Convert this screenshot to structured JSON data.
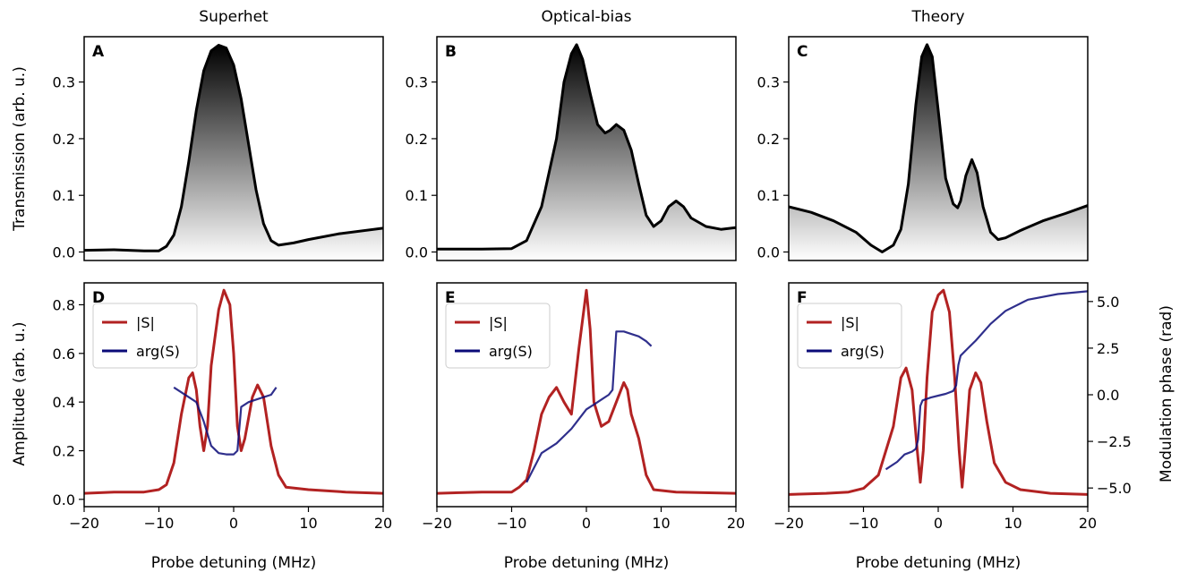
{
  "columns": [
    "Superhet",
    "Optical-bias",
    "Theory"
  ],
  "colors": {
    "amplitude": "#b22222",
    "phase": "#0a0a78",
    "transmission": "#000000"
  },
  "chart_data": [
    {
      "panel": "A",
      "type": "area",
      "column": "Superhet",
      "ylabel": "Transmission (arb. u.)",
      "xlim": [
        -20,
        20
      ],
      "ylim": [
        -0.015,
        0.38
      ],
      "yticks": [
        0.0,
        0.1,
        0.2,
        0.3
      ],
      "points": [
        [
          -20,
          0.003
        ],
        [
          -16,
          0.004
        ],
        [
          -12,
          0.002
        ],
        [
          -10,
          0.002
        ],
        [
          -9,
          0.01
        ],
        [
          -8,
          0.03
        ],
        [
          -7,
          0.08
        ],
        [
          -6,
          0.16
        ],
        [
          -5,
          0.25
        ],
        [
          -4,
          0.32
        ],
        [
          -3,
          0.355
        ],
        [
          -2,
          0.365
        ],
        [
          -1,
          0.36
        ],
        [
          0,
          0.33
        ],
        [
          1,
          0.27
        ],
        [
          2,
          0.19
        ],
        [
          3,
          0.11
        ],
        [
          4,
          0.05
        ],
        [
          5,
          0.02
        ],
        [
          6,
          0.012
        ],
        [
          8,
          0.016
        ],
        [
          10,
          0.022
        ],
        [
          14,
          0.032
        ],
        [
          20,
          0.042
        ]
      ]
    },
    {
      "panel": "B",
      "type": "area",
      "column": "Optical-bias",
      "xlim": [
        -20,
        20
      ],
      "ylim": [
        -0.015,
        0.38
      ],
      "yticks": [
        0.0,
        0.1,
        0.2,
        0.3
      ],
      "points": [
        [
          -20,
          0.005
        ],
        [
          -14,
          0.005
        ],
        [
          -10,
          0.006
        ],
        [
          -8,
          0.02
        ],
        [
          -6,
          0.08
        ],
        [
          -4,
          0.2
        ],
        [
          -3,
          0.3
        ],
        [
          -2,
          0.35
        ],
        [
          -1.3,
          0.366
        ],
        [
          -0.5,
          0.34
        ],
        [
          0.5,
          0.28
        ],
        [
          1.5,
          0.225
        ],
        [
          2.5,
          0.21
        ],
        [
          3.2,
          0.215
        ],
        [
          4,
          0.225
        ],
        [
          5,
          0.215
        ],
        [
          6,
          0.18
        ],
        [
          7,
          0.12
        ],
        [
          8,
          0.065
        ],
        [
          9,
          0.045
        ],
        [
          10,
          0.055
        ],
        [
          11,
          0.08
        ],
        [
          12,
          0.09
        ],
        [
          13,
          0.08
        ],
        [
          14,
          0.06
        ],
        [
          16,
          0.045
        ],
        [
          18,
          0.04
        ],
        [
          20,
          0.043
        ]
      ]
    },
    {
      "panel": "C",
      "type": "area",
      "column": "Theory",
      "xlim": [
        -20,
        20
      ],
      "ylim": [
        -0.015,
        0.38
      ],
      "yticks": [
        0.0,
        0.1,
        0.2,
        0.3
      ],
      "points": [
        [
          -20,
          0.08
        ],
        [
          -17,
          0.07
        ],
        [
          -14,
          0.055
        ],
        [
          -11,
          0.035
        ],
        [
          -9,
          0.012
        ],
        [
          -7.5,
          0.0
        ],
        [
          -6,
          0.012
        ],
        [
          -5,
          0.04
        ],
        [
          -4,
          0.12
        ],
        [
          -3,
          0.26
        ],
        [
          -2.2,
          0.345
        ],
        [
          -1.5,
          0.366
        ],
        [
          -0.8,
          0.345
        ],
        [
          0,
          0.25
        ],
        [
          1,
          0.13
        ],
        [
          2,
          0.085
        ],
        [
          2.6,
          0.078
        ],
        [
          3,
          0.09
        ],
        [
          3.7,
          0.135
        ],
        [
          4.5,
          0.163
        ],
        [
          5.2,
          0.14
        ],
        [
          6,
          0.08
        ],
        [
          7,
          0.035
        ],
        [
          8,
          0.022
        ],
        [
          9,
          0.025
        ],
        [
          11,
          0.038
        ],
        [
          14,
          0.055
        ],
        [
          17,
          0.068
        ],
        [
          20,
          0.082
        ]
      ]
    },
    {
      "panel": "D",
      "type": "line",
      "column": "Superhet",
      "xlabel": "Probe detuning (MHz)",
      "ylabel": "Amplitude (arb. u.)",
      "xlim": [
        -20,
        20
      ],
      "ylim": [
        -0.03,
        0.89
      ],
      "xticks": [
        -20,
        -10,
        0,
        10,
        20
      ],
      "yticks": [
        0.0,
        0.2,
        0.4,
        0.6,
        0.8
      ],
      "series": [
        {
          "name": "|S|",
          "points": [
            [
              -20,
              0.025
            ],
            [
              -16,
              0.03
            ],
            [
              -12,
              0.03
            ],
            [
              -10,
              0.04
            ],
            [
              -9,
              0.06
            ],
            [
              -8,
              0.15
            ],
            [
              -7,
              0.35
            ],
            [
              -6,
              0.5
            ],
            [
              -5.5,
              0.52
            ],
            [
              -5,
              0.45
            ],
            [
              -4.5,
              0.3
            ],
            [
              -4,
              0.2
            ],
            [
              -3.5,
              0.3
            ],
            [
              -3,
              0.55
            ],
            [
              -2,
              0.78
            ],
            [
              -1.3,
              0.86
            ],
            [
              -0.5,
              0.8
            ],
            [
              0,
              0.6
            ],
            [
              0.5,
              0.3
            ],
            [
              1,
              0.2
            ],
            [
              1.5,
              0.25
            ],
            [
              2.5,
              0.42
            ],
            [
              3.2,
              0.47
            ],
            [
              4,
              0.42
            ],
            [
              5,
              0.22
            ],
            [
              6,
              0.1
            ],
            [
              7,
              0.05
            ],
            [
              10,
              0.04
            ],
            [
              15,
              0.03
            ],
            [
              20,
              0.025
            ]
          ]
        },
        {
          "name": "arg(S)",
          "points": [
            [
              -8,
              0.46
            ],
            [
              -6,
              0.42
            ],
            [
              -5,
              0.4
            ],
            [
              -4,
              0.32
            ],
            [
              -3,
              0.22
            ],
            [
              -2,
              0.19
            ],
            [
              -1,
              0.185
            ],
            [
              0,
              0.185
            ],
            [
              0.5,
              0.2
            ],
            [
              1,
              0.38
            ],
            [
              2,
              0.4
            ],
            [
              3,
              0.41
            ],
            [
              4,
              0.42
            ],
            [
              5,
              0.43
            ],
            [
              5.7,
              0.46
            ]
          ]
        }
      ]
    },
    {
      "panel": "E",
      "type": "line",
      "column": "Optical-bias",
      "xlabel": "Probe detuning (MHz)",
      "xlim": [
        -20,
        20
      ],
      "ylim": [
        -0.03,
        0.89
      ],
      "xticks": [
        -20,
        -10,
        0,
        10,
        20
      ],
      "series": [
        {
          "name": "|S|",
          "points": [
            [
              -20,
              0.025
            ],
            [
              -14,
              0.03
            ],
            [
              -10,
              0.03
            ],
            [
              -9,
              0.05
            ],
            [
              -8,
              0.08
            ],
            [
              -7,
              0.2
            ],
            [
              -6,
              0.35
            ],
            [
              -5,
              0.42
            ],
            [
              -4,
              0.46
            ],
            [
              -3,
              0.4
            ],
            [
              -2,
              0.35
            ],
            [
              -1,
              0.62
            ],
            [
              0,
              0.86
            ],
            [
              0.5,
              0.7
            ],
            [
              1,
              0.4
            ],
            [
              2,
              0.3
            ],
            [
              3,
              0.32
            ],
            [
              4,
              0.4
            ],
            [
              5,
              0.48
            ],
            [
              5.5,
              0.45
            ],
            [
              6,
              0.35
            ],
            [
              7,
              0.25
            ],
            [
              8,
              0.1
            ],
            [
              9,
              0.04
            ],
            [
              12,
              0.03
            ],
            [
              20,
              0.025
            ]
          ]
        },
        {
          "name": "arg(S)",
          "points": [
            [
              -8,
              0.07
            ],
            [
              -6,
              0.19
            ],
            [
              -4,
              0.23
            ],
            [
              -2,
              0.29
            ],
            [
              -1,
              0.33
            ],
            [
              0,
              0.37
            ],
            [
              1,
              0.39
            ],
            [
              2,
              0.41
            ],
            [
              3,
              0.43
            ],
            [
              3.5,
              0.45
            ],
            [
              4,
              0.69
            ],
            [
              5,
              0.69
            ],
            [
              6,
              0.68
            ],
            [
              7,
              0.67
            ],
            [
              8,
              0.65
            ],
            [
              8.7,
              0.63
            ]
          ]
        }
      ]
    },
    {
      "panel": "F",
      "type": "line",
      "column": "Theory",
      "xlabel": "Probe detuning (MHz)",
      "y2label": "Modulation phase (rad)",
      "xlim": [
        -20,
        20
      ],
      "ylim": [
        -0.03,
        0.89
      ],
      "y2lim": [
        -6.0,
        6.0
      ],
      "xticks": [
        -20,
        -10,
        0,
        10,
        20
      ],
      "y2ticks": [
        -5.0,
        -2.5,
        0.0,
        2.5,
        5.0
      ],
      "series": [
        {
          "name": "|S|",
          "axis": "left",
          "points": [
            [
              -20,
              0.02
            ],
            [
              -15,
              0.025
            ],
            [
              -12,
              0.03
            ],
            [
              -10,
              0.045
            ],
            [
              -8,
              0.1
            ],
            [
              -6,
              0.3
            ],
            [
              -5,
              0.5
            ],
            [
              -4.3,
              0.54
            ],
            [
              -3.5,
              0.45
            ],
            [
              -2.8,
              0.2
            ],
            [
              -2.4,
              0.07
            ],
            [
              -2,
              0.2
            ],
            [
              -1.5,
              0.5
            ],
            [
              -0.8,
              0.77
            ],
            [
              0,
              0.84
            ],
            [
              0.7,
              0.86
            ],
            [
              1.5,
              0.77
            ],
            [
              2.2,
              0.5
            ],
            [
              2.8,
              0.2
            ],
            [
              3.2,
              0.05
            ],
            [
              3.6,
              0.2
            ],
            [
              4.2,
              0.45
            ],
            [
              5,
              0.52
            ],
            [
              5.7,
              0.48
            ],
            [
              6.5,
              0.32
            ],
            [
              7.5,
              0.15
            ],
            [
              9,
              0.07
            ],
            [
              11,
              0.04
            ],
            [
              15,
              0.025
            ],
            [
              20,
              0.02
            ]
          ]
        },
        {
          "name": "arg(S)",
          "axis": "right",
          "points": [
            [
              -7,
              -4.0
            ],
            [
              -5.5,
              -3.6
            ],
            [
              -4.5,
              -3.2
            ],
            [
              -3.5,
              -3.05
            ],
            [
              -3,
              -2.9
            ],
            [
              -2.7,
              -2.4
            ],
            [
              -2.4,
              -0.6
            ],
            [
              -2.1,
              -0.3
            ],
            [
              -1,
              -0.15
            ],
            [
              0,
              -0.05
            ],
            [
              1,
              0.05
            ],
            [
              2,
              0.2
            ],
            [
              2.4,
              0.5
            ],
            [
              2.7,
              1.6
            ],
            [
              3,
              2.1
            ],
            [
              4,
              2.5
            ],
            [
              5,
              2.9
            ],
            [
              7,
              3.8
            ],
            [
              9,
              4.5
            ],
            [
              12,
              5.1
            ],
            [
              16,
              5.4
            ],
            [
              20,
              5.55
            ]
          ]
        }
      ]
    }
  ]
}
